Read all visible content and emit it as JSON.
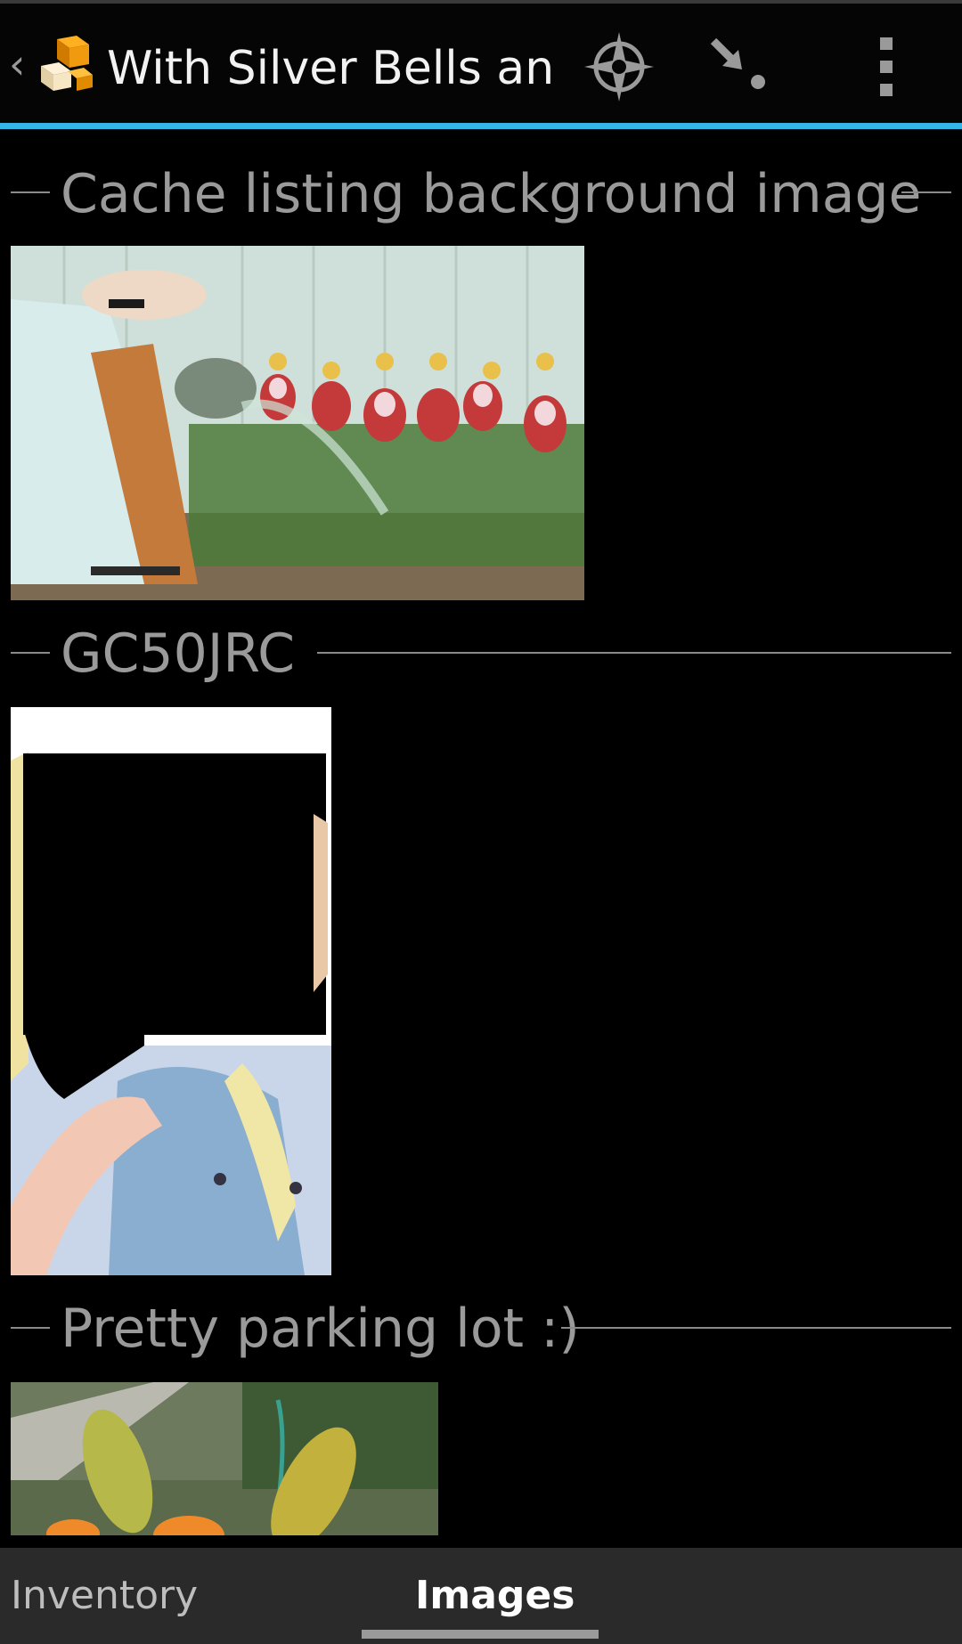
{
  "actionbar": {
    "title": "With Silver Bells an...",
    "back_icon": "chevron-left-icon",
    "app_icon": "cache-boxes-icon",
    "actions": [
      {
        "name": "compass",
        "icon": "compass-icon"
      },
      {
        "name": "navigate",
        "icon": "navigate-arrow-icon"
      },
      {
        "name": "overflow",
        "icon": "more-vert-icon"
      }
    ]
  },
  "colors": {
    "accent": "#33b5e5",
    "background": "#000000",
    "section_text": "#9a9a9a",
    "tabbar": "#2a2a2a"
  },
  "sections": [
    {
      "title": "Cache listing background image",
      "image": "vintage illustration of girl watering tulips"
    },
    {
      "title": "GC50JRC",
      "image": "photo of person in denim jacket (face redacted)"
    },
    {
      "title": "Pretty parking lot :)",
      "image": "lily buds in a garden"
    }
  ],
  "tabs": [
    {
      "label": "Inventory",
      "selected": false
    },
    {
      "label": "Images",
      "selected": true
    }
  ]
}
